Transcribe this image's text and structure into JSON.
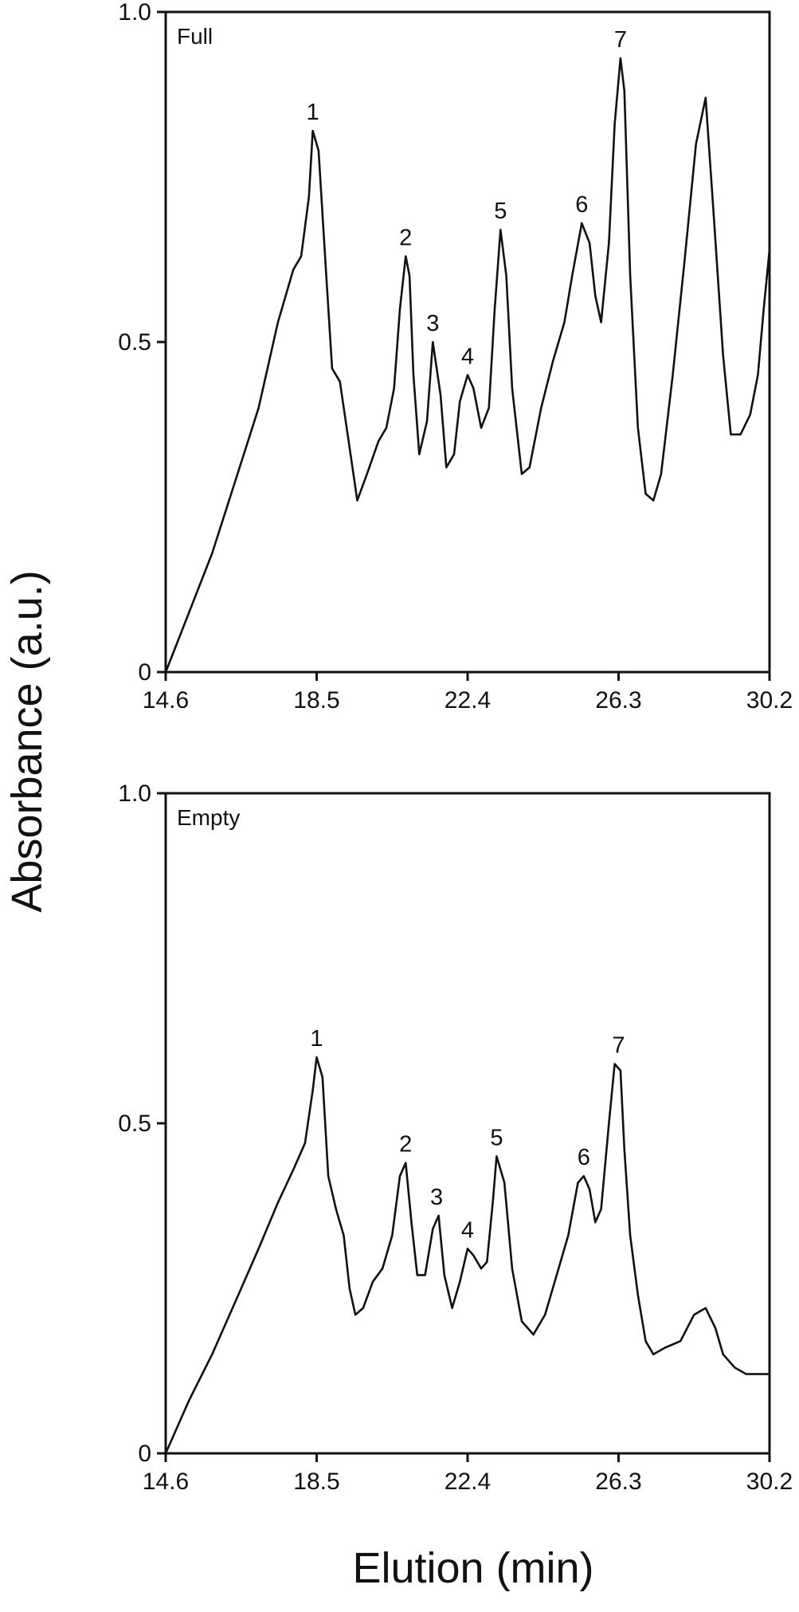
{
  "ylabel": "Absorbance (a.u.)",
  "xlabel": "Elution (min)",
  "chart_data": [
    {
      "type": "line",
      "panel_label": "Full",
      "x_ticks": [
        "14.6",
        "18.5",
        "22.4",
        "26.3",
        "30.2"
      ],
      "y_ticks": [
        "0",
        "0.5",
        "1.0"
      ],
      "xlim": [
        14.6,
        30.2
      ],
      "ylim": [
        0,
        1.0
      ],
      "series": [
        {
          "line_color": "#111111",
          "x": [
            14.6,
            15.2,
            15.8,
            16.4,
            17.0,
            17.5,
            17.9,
            18.1,
            18.3,
            18.4,
            18.55,
            18.75,
            18.9,
            19.1,
            19.3,
            19.55,
            19.8,
            20.1,
            20.3,
            20.5,
            20.65,
            20.8,
            20.9,
            21.0,
            21.15,
            21.35,
            21.5,
            21.7,
            21.85,
            22.05,
            22.2,
            22.4,
            22.55,
            22.75,
            22.95,
            23.1,
            23.25,
            23.4,
            23.55,
            23.8,
            24.0,
            24.3,
            24.6,
            24.9,
            25.1,
            25.35,
            25.55,
            25.7,
            25.85,
            26.05,
            26.2,
            26.35,
            26.45,
            26.6,
            26.8,
            27.0,
            27.2,
            27.4,
            27.7,
            28.0,
            28.3,
            28.55,
            28.75,
            29.0,
            29.2,
            29.45,
            29.7,
            29.9,
            30.05,
            30.2
          ],
          "y": [
            0.0,
            0.09,
            0.18,
            0.29,
            0.4,
            0.53,
            0.61,
            0.63,
            0.72,
            0.82,
            0.79,
            0.6,
            0.46,
            0.44,
            0.36,
            0.26,
            0.3,
            0.35,
            0.37,
            0.43,
            0.55,
            0.63,
            0.6,
            0.45,
            0.33,
            0.38,
            0.5,
            0.42,
            0.31,
            0.33,
            0.41,
            0.45,
            0.43,
            0.37,
            0.4,
            0.55,
            0.67,
            0.6,
            0.43,
            0.3,
            0.31,
            0.4,
            0.47,
            0.53,
            0.6,
            0.68,
            0.65,
            0.57,
            0.53,
            0.65,
            0.83,
            0.93,
            0.88,
            0.6,
            0.37,
            0.27,
            0.26,
            0.3,
            0.45,
            0.62,
            0.8,
            0.87,
            0.7,
            0.48,
            0.36,
            0.36,
            0.39,
            0.45,
            0.55,
            0.64
          ]
        }
      ],
      "peaks": [
        {
          "label": "1",
          "x": 18.4,
          "y": 0.82
        },
        {
          "label": "2",
          "x": 20.8,
          "y": 0.63
        },
        {
          "label": "3",
          "x": 21.5,
          "y": 0.5
        },
        {
          "label": "4",
          "x": 22.4,
          "y": 0.45
        },
        {
          "label": "5",
          "x": 23.25,
          "y": 0.67
        },
        {
          "label": "6",
          "x": 25.35,
          "y": 0.68
        },
        {
          "label": "7",
          "x": 26.35,
          "y": 0.93
        }
      ]
    },
    {
      "type": "line",
      "panel_label": "Empty",
      "x_ticks": [
        "14.6",
        "18.5",
        "22.4",
        "26.3",
        "30.2"
      ],
      "y_ticks": [
        "0",
        "0.5",
        "1.0"
      ],
      "xlim": [
        14.6,
        30.2
      ],
      "ylim": [
        0,
        1.0
      ],
      "series": [
        {
          "line_color": "#111111",
          "x": [
            14.6,
            15.2,
            15.8,
            16.4,
            17.0,
            17.5,
            17.9,
            18.2,
            18.4,
            18.5,
            18.65,
            18.8,
            19.0,
            19.2,
            19.35,
            19.5,
            19.7,
            19.95,
            20.2,
            20.45,
            20.65,
            20.8,
            20.95,
            21.1,
            21.3,
            21.5,
            21.65,
            21.8,
            22.0,
            22.2,
            22.4,
            22.55,
            22.75,
            22.9,
            23.05,
            23.15,
            23.35,
            23.55,
            23.8,
            24.1,
            24.4,
            24.7,
            25.0,
            25.25,
            25.4,
            25.55,
            25.7,
            25.85,
            26.05,
            26.2,
            26.35,
            26.45,
            26.6,
            26.8,
            27.0,
            27.2,
            27.5,
            27.9,
            28.25,
            28.55,
            28.8,
            29.0,
            29.3,
            29.6,
            29.9,
            30.2
          ],
          "y": [
            0.0,
            0.08,
            0.15,
            0.23,
            0.31,
            0.38,
            0.43,
            0.47,
            0.55,
            0.6,
            0.57,
            0.42,
            0.37,
            0.33,
            0.25,
            0.21,
            0.22,
            0.26,
            0.28,
            0.33,
            0.42,
            0.44,
            0.35,
            0.27,
            0.27,
            0.34,
            0.36,
            0.27,
            0.22,
            0.26,
            0.31,
            0.3,
            0.28,
            0.29,
            0.38,
            0.45,
            0.41,
            0.28,
            0.2,
            0.18,
            0.21,
            0.27,
            0.33,
            0.41,
            0.42,
            0.4,
            0.35,
            0.37,
            0.5,
            0.59,
            0.58,
            0.46,
            0.33,
            0.24,
            0.17,
            0.15,
            0.16,
            0.17,
            0.21,
            0.22,
            0.19,
            0.15,
            0.13,
            0.12,
            0.12,
            0.12
          ]
        }
      ],
      "peaks": [
        {
          "label": "1",
          "x": 18.5,
          "y": 0.6
        },
        {
          "label": "2",
          "x": 20.8,
          "y": 0.44
        },
        {
          "label": "3",
          "x": 21.6,
          "y": 0.36
        },
        {
          "label": "4",
          "x": 22.4,
          "y": 0.31
        },
        {
          "label": "5",
          "x": 23.15,
          "y": 0.45
        },
        {
          "label": "6",
          "x": 25.4,
          "y": 0.42
        },
        {
          "label": "7",
          "x": 26.3,
          "y": 0.59
        }
      ]
    }
  ]
}
